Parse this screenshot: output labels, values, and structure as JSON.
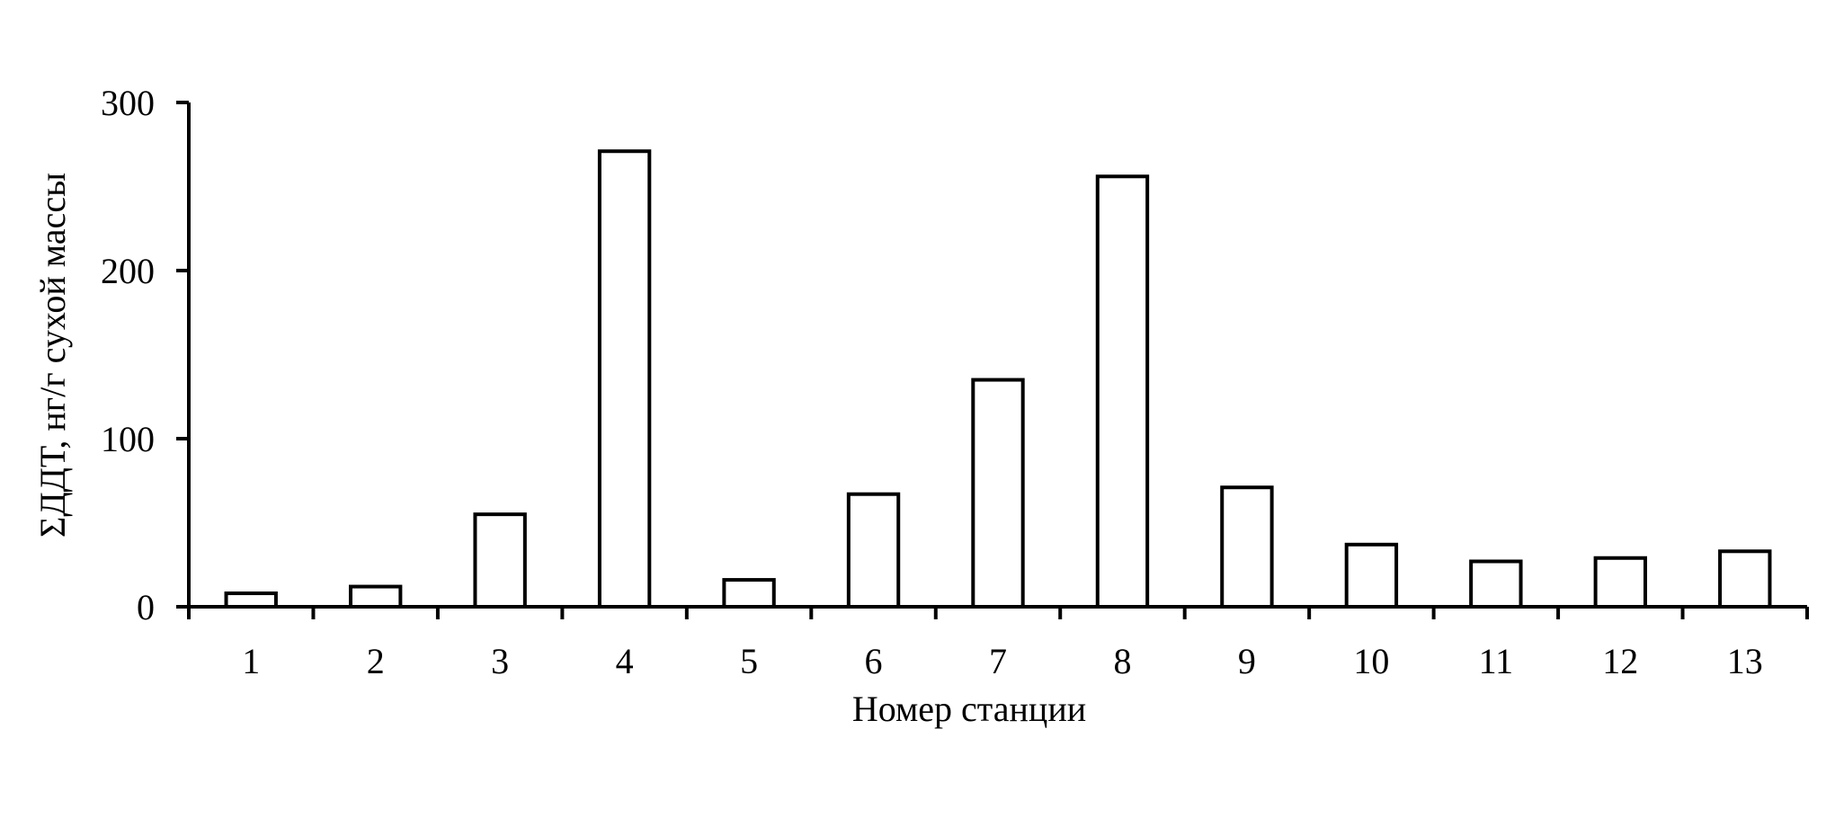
{
  "chart_data": {
    "type": "bar",
    "categories": [
      "1",
      "2",
      "3",
      "4",
      "5",
      "6",
      "7",
      "8",
      "9",
      "10",
      "11",
      "12",
      "13"
    ],
    "values": [
      8,
      12,
      55,
      271,
      16,
      67,
      135,
      256,
      71,
      37,
      27,
      29,
      33
    ],
    "xlabel": "Номер станции",
    "ylabel": "ΣДДТ, нг/г сухой массы",
    "ylim": [
      0,
      300
    ],
    "yticks": [
      "0",
      "100",
      "200",
      "300"
    ],
    "bar_fill": "#ffffff",
    "bar_stroke": "#000000",
    "grid": false,
    "legend": "none"
  }
}
